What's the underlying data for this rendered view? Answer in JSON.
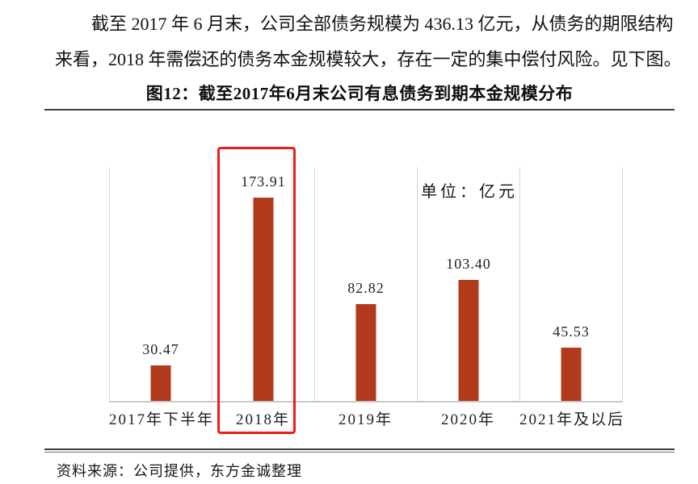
{
  "document": {
    "paragraph_lines": [
      "截至 2017 年 6 月末，公司全部债务规模为 436.13 亿元，从债务的期限结构",
      "来看，2018 年需偿还的债务本金规模较大，存在一定的集中偿付风险。见下图。"
    ],
    "figure_title": "图12：截至2017年6月末公司有息债务到期本金规模分布",
    "source_note": "资料来源：公司提供，东方金诚整理"
  },
  "chart_data": {
    "type": "bar",
    "title": "截至2017年6月末公司有息债务到期本金规模分布",
    "figure_number": "图12",
    "unit_label": "单位：亿元",
    "categories": [
      "2017年下半年",
      "2018年",
      "2019年",
      "2020年",
      "2021年及以后"
    ],
    "values": [
      30.47,
      173.91,
      82.82,
      103.4,
      45.53
    ],
    "value_labels": [
      "30.47",
      "173.91",
      "82.82",
      "103.40",
      "45.53"
    ],
    "xlabel": "",
    "ylabel": "",
    "ylim": [
      0,
      200
    ],
    "grid": "vertical-category-separators-only",
    "legend": "none",
    "bar_color": "#b13a1d",
    "highlight": {
      "category": "2018年",
      "style": "red-outline-box",
      "border_color": "#ee1b18"
    }
  },
  "colors": {
    "background": "#ffffff",
    "bar": "#b13a1d",
    "highlight_red": "#ee1b18",
    "gridline": "#d6d6d6",
    "axis_baseline": "#c9c9c9",
    "rule_dark": "#3d3d3d",
    "text": "#1c1c1c"
  }
}
